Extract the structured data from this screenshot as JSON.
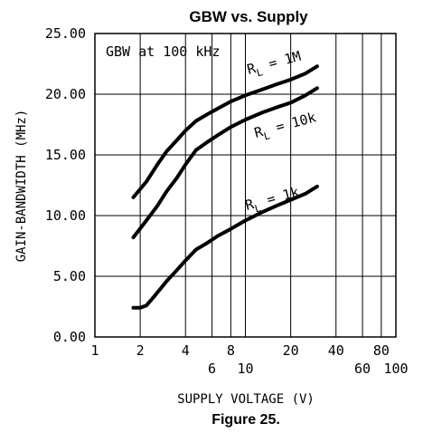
{
  "chart_data": {
    "type": "line",
    "title": "GBW vs. Supply",
    "caption": "Figure 25.",
    "xlabel": "SUPPLY VOLTAGE (V)",
    "ylabel": "GAIN-BANDWIDTH (MHz)",
    "x_scale": "log",
    "xlim": [
      1,
      100
    ],
    "ylim": [
      0,
      25
    ],
    "grid": true,
    "x_ticks": [
      {
        "value": 1,
        "label": "1",
        "row": "upper"
      },
      {
        "value": 2,
        "label": "2",
        "row": "upper"
      },
      {
        "value": 4,
        "label": "4",
        "row": "upper"
      },
      {
        "value": 6,
        "label": "6",
        "row": "lower"
      },
      {
        "value": 8,
        "label": "8",
        "row": "upper"
      },
      {
        "value": 10,
        "label": "10",
        "row": "lower"
      },
      {
        "value": 20,
        "label": "20",
        "row": "upper"
      },
      {
        "value": 40,
        "label": "40",
        "row": "upper"
      },
      {
        "value": 60,
        "label": "60",
        "row": "lower"
      },
      {
        "value": 80,
        "label": "80",
        "row": "upper"
      },
      {
        "value": 100,
        "label": "100",
        "row": "lower"
      }
    ],
    "y_ticks": [
      {
        "value": 0,
        "label": "0.00"
      },
      {
        "value": 5,
        "label": "5.00"
      },
      {
        "value": 10,
        "label": "10.00"
      },
      {
        "value": 15,
        "label": "15.00"
      },
      {
        "value": 20,
        "label": "20.00"
      },
      {
        "value": 25,
        "label": "25.00"
      }
    ],
    "annotation": "GBW at 100 kHz",
    "series": [
      {
        "name": "RL = 1M",
        "label_main": "R",
        "label_sub": "L",
        "label_rest": " = 1M",
        "x": [
          1.8,
          2.2,
          2.6,
          3.0,
          3.5,
          4.0,
          4.7,
          5.5,
          6.5,
          8.0,
          10.0,
          13.0,
          16.0,
          20.0,
          25.0,
          30.0
        ],
        "y": [
          11.5,
          12.8,
          14.2,
          15.3,
          16.2,
          17.0,
          17.8,
          18.3,
          18.8,
          19.4,
          19.9,
          20.4,
          20.8,
          21.2,
          21.7,
          22.3
        ]
      },
      {
        "name": "RL = 10k",
        "label_main": "R",
        "label_sub": "L",
        "label_rest": " = 10k",
        "x": [
          1.8,
          2.2,
          2.6,
          3.0,
          3.5,
          4.0,
          4.7,
          5.5,
          6.5,
          8.0,
          10.0,
          13.0,
          16.0,
          20.0,
          25.0,
          30.0
        ],
        "y": [
          8.2,
          9.6,
          10.8,
          12.0,
          13.1,
          14.2,
          15.4,
          16.0,
          16.6,
          17.3,
          17.9,
          18.5,
          18.9,
          19.3,
          19.9,
          20.5
        ]
      },
      {
        "name": "RL = 1k",
        "label_main": "R",
        "label_sub": "L",
        "label_rest": " = 1k",
        "x": [
          1.8,
          2.0,
          2.2,
          2.5,
          3.0,
          3.5,
          4.0,
          4.7,
          5.5,
          6.5,
          8.0,
          10.0,
          13.0,
          16.0,
          20.0,
          25.0,
          30.0
        ],
        "y": [
          2.4,
          2.4,
          2.6,
          3.4,
          4.6,
          5.5,
          6.3,
          7.2,
          7.7,
          8.3,
          8.9,
          9.6,
          10.3,
          10.8,
          11.3,
          11.8,
          12.4
        ]
      }
    ]
  }
}
